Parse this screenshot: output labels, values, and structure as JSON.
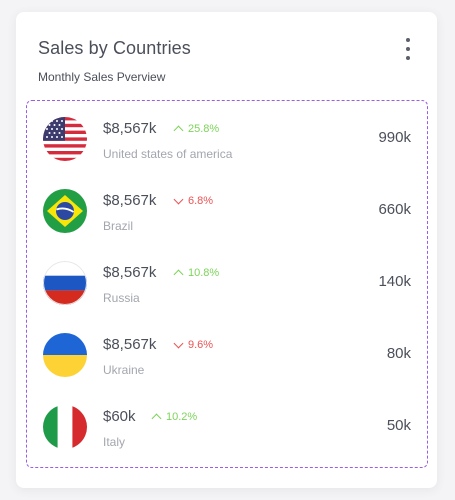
{
  "card": {
    "title": "Sales by Countries",
    "subtitle": "Monthly Sales Pverview",
    "menu_icon": "kebab-menu-icon"
  },
  "colors": {
    "up": "#7dd35a",
    "down": "#ea5455",
    "dashed_border": "#9b5de5"
  },
  "countries": [
    {
      "flag_icon": "usa-flag-icon",
      "amount": "$8,567k",
      "trend": "up",
      "change": "25.8%",
      "name": "United states of america",
      "value": "990k"
    },
    {
      "flag_icon": "brazil-flag-icon",
      "amount": "$8,567k",
      "trend": "down",
      "change": "6.8%",
      "name": "Brazil",
      "value": "660k"
    },
    {
      "flag_icon": "russia-flag-icon",
      "amount": "$8,567k",
      "trend": "up",
      "change": "10.8%",
      "name": "Russia",
      "value": "140k"
    },
    {
      "flag_icon": "ukraine-flag-icon",
      "amount": "$8,567k",
      "trend": "down",
      "change": "9.6%",
      "name": "Ukraine",
      "value": "80k"
    },
    {
      "flag_icon": "italy-flag-icon",
      "amount": "$60k",
      "trend": "up",
      "change": "10.2%",
      "name": "Italy",
      "value": "50k"
    }
  ]
}
